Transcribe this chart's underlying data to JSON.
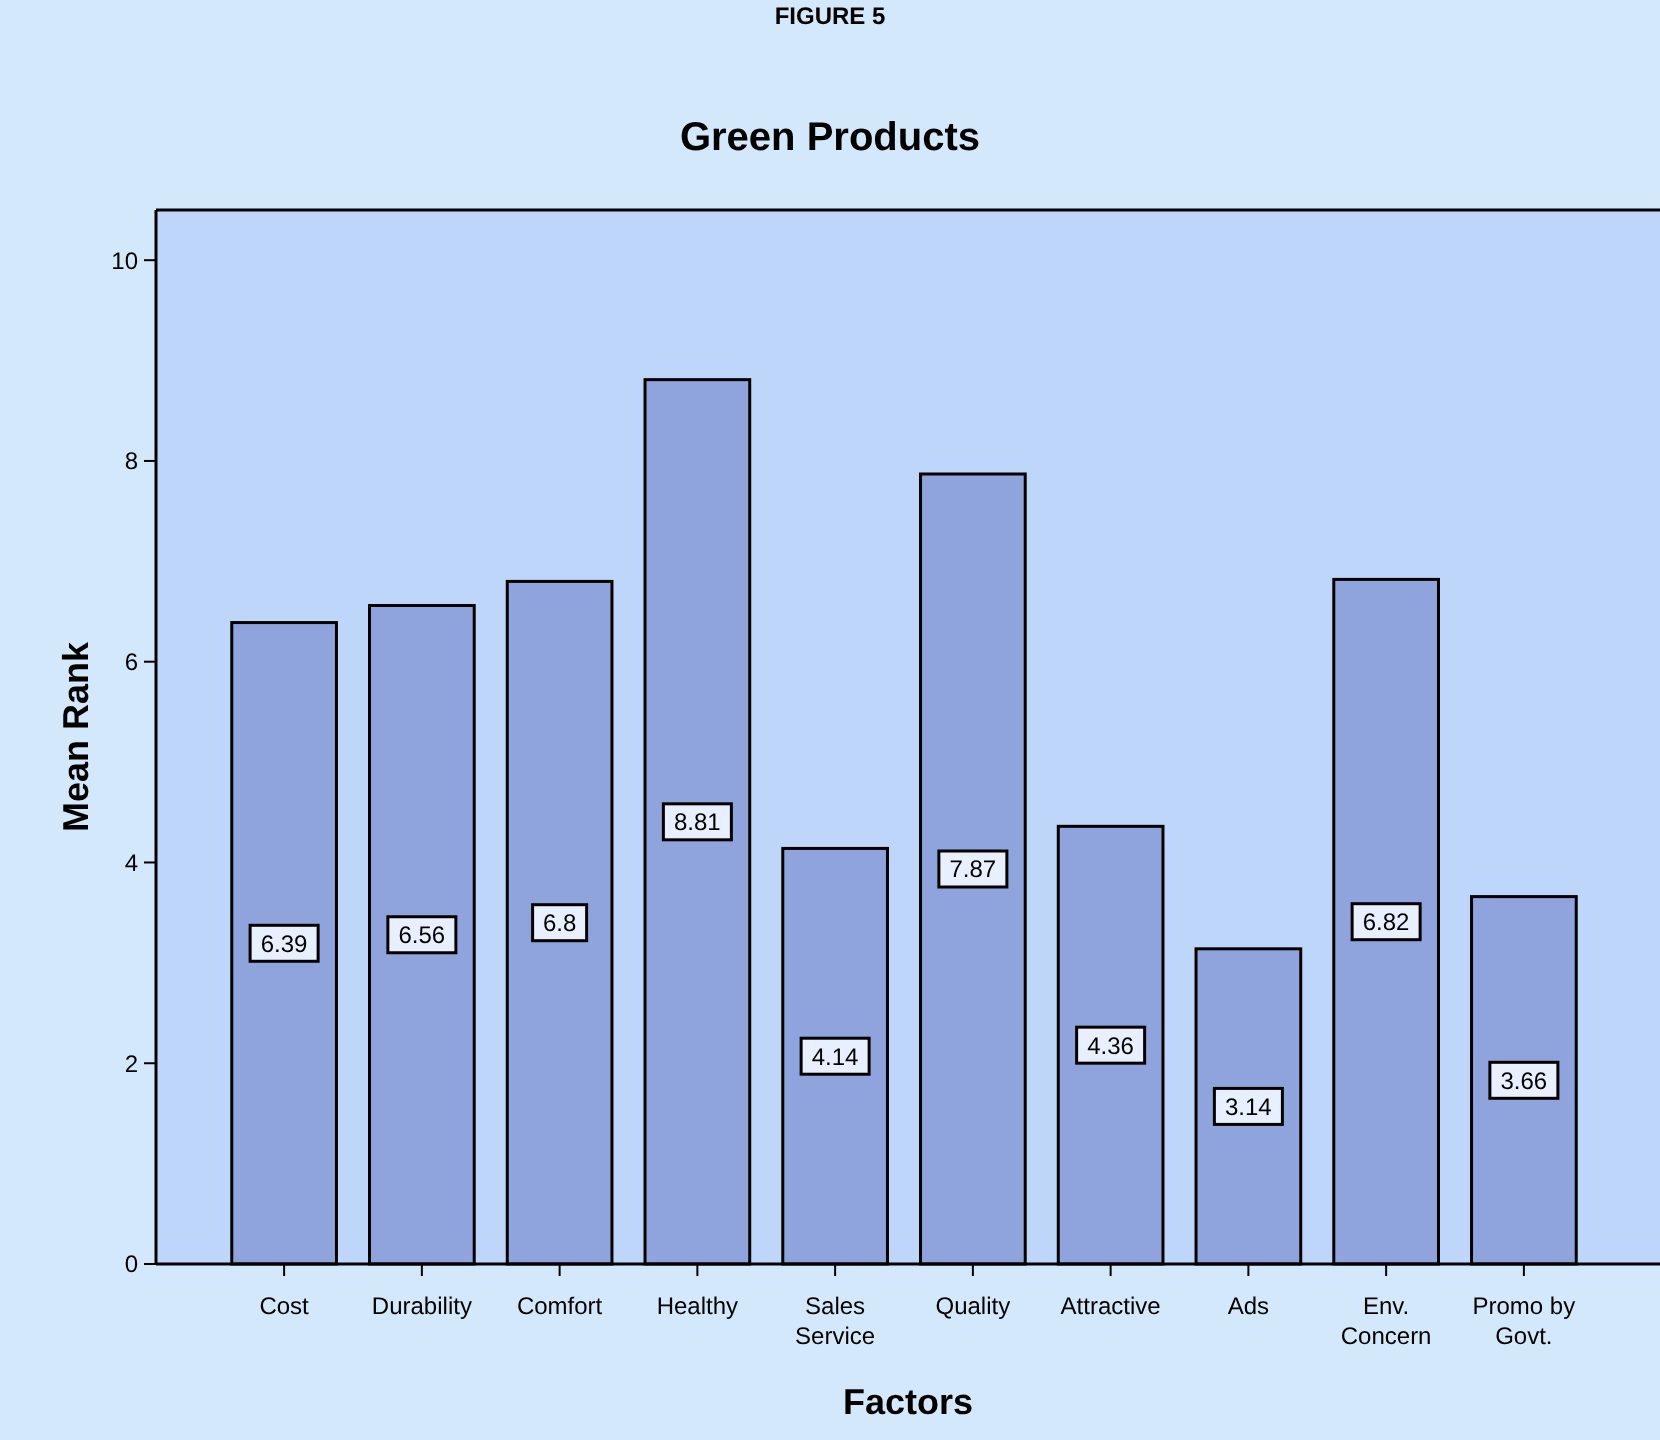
{
  "chart_data": {
    "type": "bar",
    "title": "Green Products",
    "xlabel": "Factors",
    "ylabel": "Mean Rank",
    "annotations": [
      "FIGURE 5"
    ],
    "categories": [
      "Cost",
      "Durability",
      "Comfort",
      "Healthy",
      "Sales\nService",
      "Quality",
      "Attractive",
      "Ads",
      "Env.\nConcern",
      "Promo by\nGovt."
    ],
    "values": [
      6.39,
      6.56,
      6.8,
      8.81,
      4.14,
      7.87,
      4.36,
      3.14,
      6.82,
      3.66
    ],
    "color": "#8fa4dc",
    "data_labels": true,
    "grid": false,
    "ylim": [
      0,
      10.5
    ],
    "yticks": [
      0,
      2,
      4,
      6,
      8,
      10
    ]
  }
}
